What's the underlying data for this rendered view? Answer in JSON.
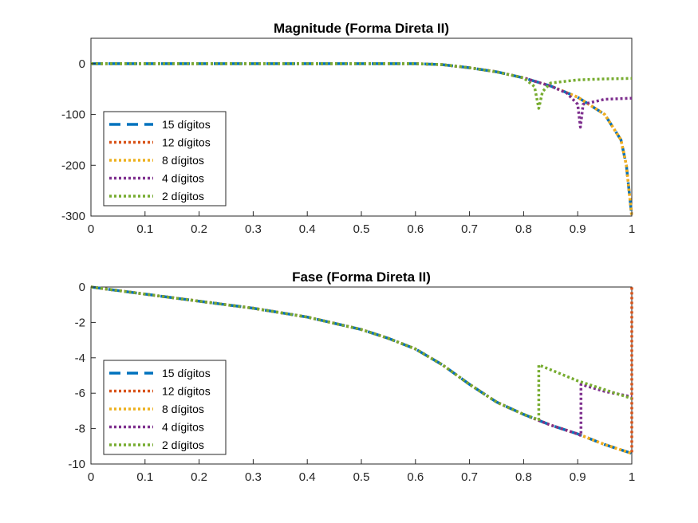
{
  "chart_data": [
    {
      "type": "line",
      "title": "Magnitude (Forma Direta II)",
      "xlabel": "",
      "ylabel": "",
      "xlim": [
        0,
        1
      ],
      "ylim": [
        -300,
        50
      ],
      "xticks": [
        "0",
        "0.1",
        "0.2",
        "0.3",
        "0.4",
        "0.5",
        "0.6",
        "0.7",
        "0.8",
        "0.9",
        "1"
      ],
      "yticks": [
        "0",
        "-100",
        "-200",
        "-300"
      ],
      "grid": false,
      "legend_position": "bottom-left",
      "series": [
        {
          "name": "15 dígitos",
          "color": "#0072BD",
          "style": "dashed",
          "x": [
            0,
            0.5,
            0.6,
            0.65,
            0.7,
            0.75,
            0.8,
            0.85,
            0.9,
            0.95,
            0.98,
            0.99,
            1.0
          ],
          "y": [
            0,
            0,
            0,
            -2,
            -8,
            -16,
            -28,
            -44,
            -66,
            -100,
            -150,
            -200,
            -300
          ]
        },
        {
          "name": "12 dígitos",
          "color": "#D95319",
          "style": "dotted",
          "x": [
            0,
            0.5,
            0.6,
            0.65,
            0.7,
            0.75,
            0.8,
            0.85,
            0.9,
            0.95,
            0.98,
            0.99,
            1.0
          ],
          "y": [
            0,
            0,
            0,
            -2,
            -8,
            -16,
            -28,
            -44,
            -66,
            -100,
            -150,
            -200,
            -300
          ]
        },
        {
          "name": "8 dígitos",
          "color": "#EDB120",
          "style": "dotted",
          "x": [
            0,
            0.5,
            0.6,
            0.65,
            0.7,
            0.75,
            0.8,
            0.85,
            0.9,
            0.95,
            0.98,
            0.99,
            1.0
          ],
          "y": [
            0,
            0,
            0,
            -2,
            -8,
            -16,
            -28,
            -44,
            -66,
            -100,
            -150,
            -200,
            -300
          ]
        },
        {
          "name": "4 dígitos",
          "color": "#7E2F8E",
          "style": "dotted",
          "x": [
            0,
            0.5,
            0.6,
            0.65,
            0.7,
            0.75,
            0.8,
            0.85,
            0.88,
            0.9,
            0.905,
            0.91,
            0.95,
            1.0
          ],
          "y": [
            0,
            0,
            0,
            -2,
            -8,
            -16,
            -28,
            -44,
            -58,
            -80,
            -125,
            -80,
            -70,
            -68
          ]
        },
        {
          "name": "2 dígitos",
          "color": "#77AC30",
          "style": "dotted",
          "x": [
            0,
            0.5,
            0.6,
            0.65,
            0.7,
            0.75,
            0.8,
            0.82,
            0.828,
            0.835,
            0.85,
            0.9,
            0.95,
            1.0
          ],
          "y": [
            0,
            0,
            0,
            -2,
            -8,
            -16,
            -28,
            -45,
            -88,
            -55,
            -38,
            -32,
            -30,
            -29
          ]
        }
      ]
    },
    {
      "type": "line",
      "title": "Fase (Forma Direta II)",
      "xlabel": "",
      "ylabel": "",
      "xlim": [
        0,
        1
      ],
      "ylim": [
        -10,
        0
      ],
      "xticks": [
        "0",
        "0.1",
        "0.2",
        "0.3",
        "0.4",
        "0.5",
        "0.6",
        "0.7",
        "0.8",
        "0.9",
        "1"
      ],
      "yticks": [
        "0",
        "-2",
        "-4",
        "-6",
        "-8",
        "-10"
      ],
      "grid": false,
      "legend_position": "bottom-left",
      "series": [
        {
          "name": "15 dígitos",
          "color": "#0072BD",
          "style": "dashed",
          "x": [
            0,
            0.1,
            0.2,
            0.3,
            0.4,
            0.5,
            0.55,
            0.6,
            0.65,
            0.7,
            0.75,
            0.8,
            0.85,
            0.9,
            0.95,
            1.0
          ],
          "y": [
            0,
            -0.4,
            -0.8,
            -1.2,
            -1.7,
            -2.4,
            -2.9,
            -3.5,
            -4.4,
            -5.5,
            -6.5,
            -7.2,
            -7.8,
            -8.3,
            -8.9,
            -9.4
          ]
        },
        {
          "name": "12 dígitos",
          "color": "#D95319",
          "style": "dotted",
          "x": [
            0,
            0.1,
            0.2,
            0.3,
            0.4,
            0.5,
            0.55,
            0.6,
            0.65,
            0.7,
            0.75,
            0.8,
            0.85,
            0.9,
            0.95,
            1.0,
            1.0
          ],
          "y": [
            0,
            -0.4,
            -0.8,
            -1.2,
            -1.7,
            -2.4,
            -2.9,
            -3.5,
            -4.4,
            -5.5,
            -6.5,
            -7.2,
            -7.8,
            -8.3,
            -8.9,
            -9.4,
            0
          ]
        },
        {
          "name": "8 dígitos",
          "color": "#EDB120",
          "style": "dotted",
          "x": [
            0,
            0.1,
            0.2,
            0.3,
            0.4,
            0.5,
            0.55,
            0.6,
            0.65,
            0.7,
            0.75,
            0.8,
            0.85,
            0.9,
            0.95,
            1.0
          ],
          "y": [
            0,
            -0.4,
            -0.8,
            -1.2,
            -1.7,
            -2.4,
            -2.9,
            -3.5,
            -4.4,
            -5.5,
            -6.5,
            -7.2,
            -7.8,
            -8.3,
            -8.9,
            -9.4
          ]
        },
        {
          "name": "4 dígitos",
          "color": "#7E2F8E",
          "style": "dotted",
          "x": [
            0,
            0.1,
            0.2,
            0.3,
            0.4,
            0.5,
            0.55,
            0.6,
            0.65,
            0.7,
            0.75,
            0.8,
            0.85,
            0.9,
            0.906,
            0.906,
            0.95,
            1.0
          ],
          "y": [
            0,
            -0.4,
            -0.8,
            -1.2,
            -1.7,
            -2.4,
            -2.9,
            -3.5,
            -4.4,
            -5.5,
            -6.5,
            -7.2,
            -7.8,
            -8.3,
            -8.4,
            -5.5,
            -5.9,
            -6.2
          ]
        },
        {
          "name": "2 dígitos",
          "color": "#77AC30",
          "style": "dotted",
          "x": [
            0,
            0.1,
            0.2,
            0.3,
            0.4,
            0.5,
            0.55,
            0.6,
            0.65,
            0.7,
            0.75,
            0.8,
            0.828,
            0.828,
            0.9,
            0.95,
            1.0
          ],
          "y": [
            0,
            -0.4,
            -0.8,
            -1.2,
            -1.7,
            -2.4,
            -2.9,
            -3.5,
            -4.4,
            -5.5,
            -6.5,
            -7.2,
            -7.5,
            -4.4,
            -5.3,
            -5.8,
            -6.3
          ]
        }
      ]
    }
  ]
}
